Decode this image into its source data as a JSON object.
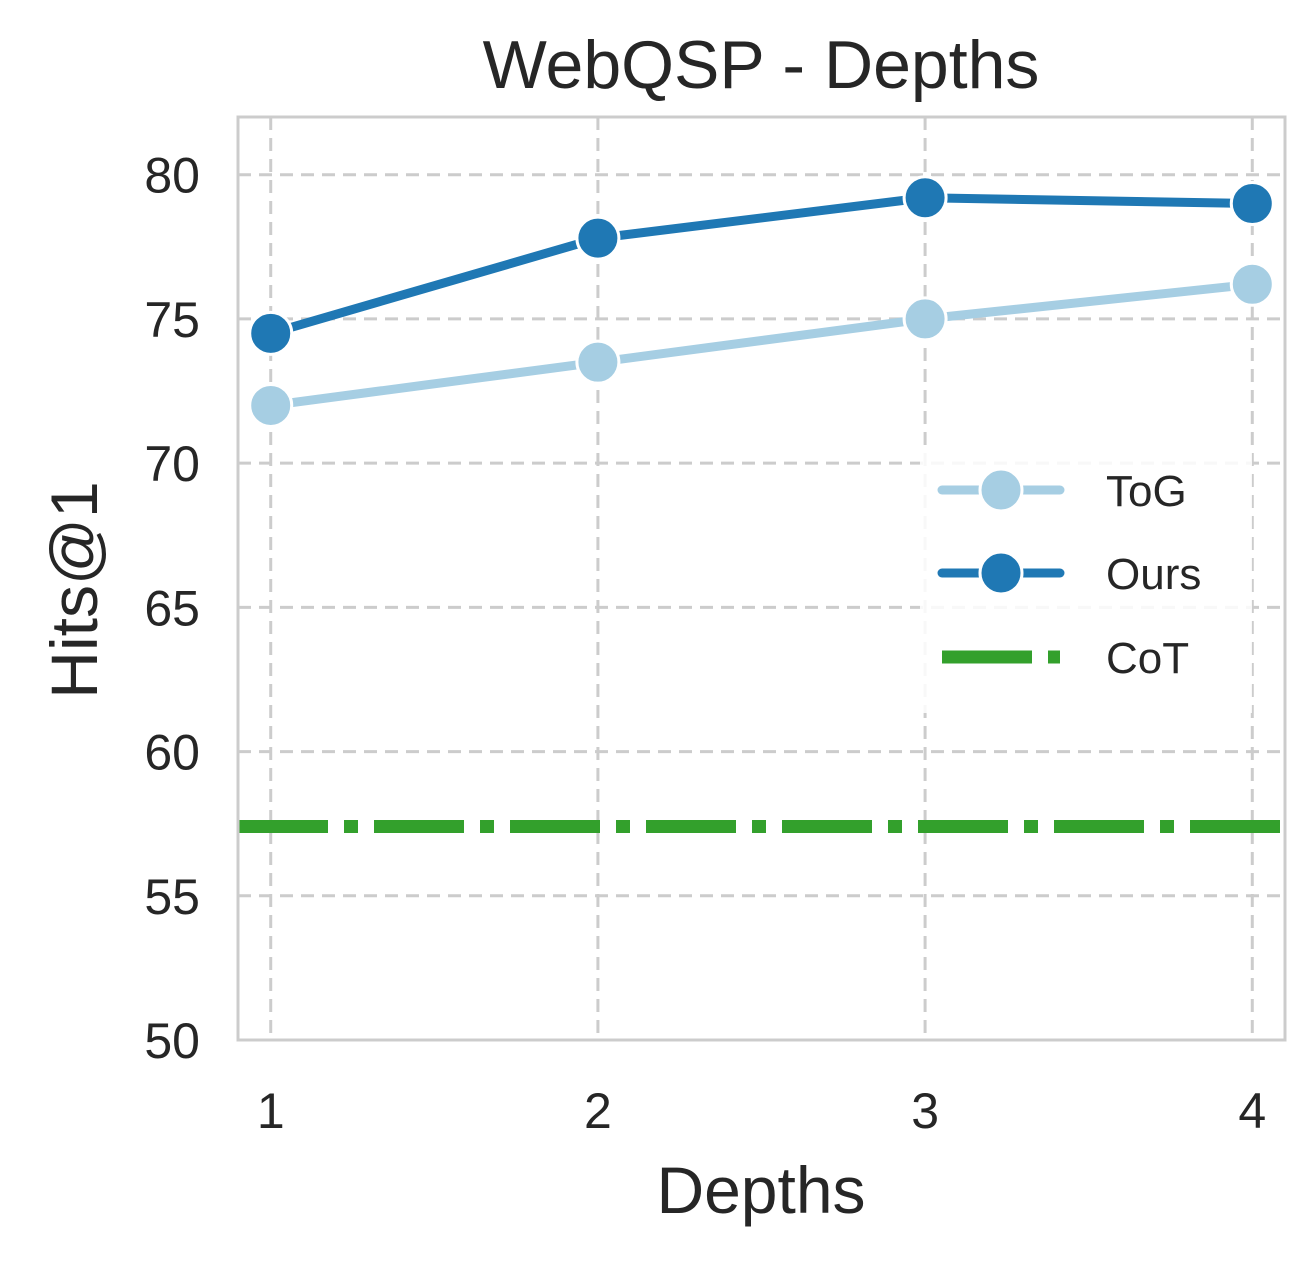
{
  "chart_data": {
    "type": "line",
    "title": "WebQSP - Depths",
    "xlabel": "Depths",
    "ylabel": "Hits@1",
    "x": [
      1,
      2,
      3,
      4
    ],
    "xlim": [
      0.9,
      4.1
    ],
    "ylim": [
      50,
      82
    ],
    "xticks": [
      "1",
      "2",
      "3",
      "4"
    ],
    "yticks": [
      "50",
      "55",
      "60",
      "65",
      "70",
      "75",
      "80"
    ],
    "grid": true,
    "legend_position": "center-right",
    "series": [
      {
        "name": "ToG",
        "values": [
          72.0,
          73.5,
          75.0,
          76.2
        ],
        "color": "#a6cee3",
        "style": "solid-marker"
      },
      {
        "name": "Ours",
        "values": [
          74.5,
          77.8,
          79.2,
          79.0
        ],
        "color": "#1f78b4",
        "style": "solid-marker"
      },
      {
        "name": "CoT",
        "value": 57.4,
        "color": "#33a02c",
        "style": "dashdot-hline"
      }
    ]
  }
}
